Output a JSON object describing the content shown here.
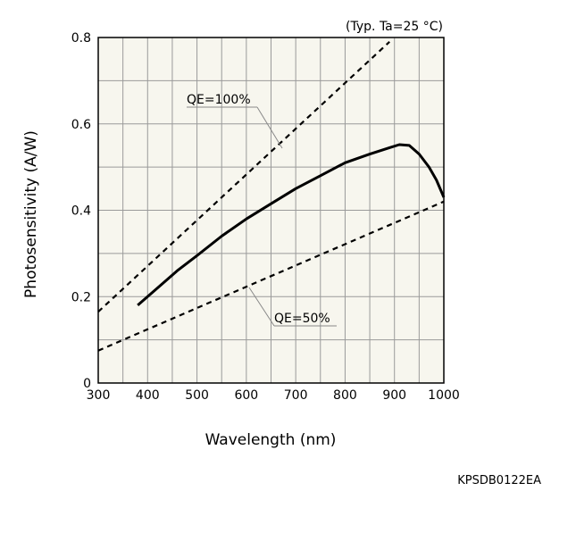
{
  "chart_data": {
    "type": "line",
    "title": "",
    "condition_note": "(Typ. Ta=25 °C)",
    "xlabel": "Wavelength (nm)",
    "ylabel": "Photosensitivity (A/W)",
    "xlim": [
      300,
      1000
    ],
    "ylim": [
      0,
      0.8
    ],
    "x_ticks": [
      300,
      400,
      500,
      600,
      700,
      800,
      900,
      1000
    ],
    "y_ticks": [
      0,
      0.2,
      0.4,
      0.6,
      0.8
    ],
    "x_tick_labels": [
      "300",
      "400",
      "500",
      "600",
      "700",
      "800",
      "900",
      "1000"
    ],
    "y_tick_labels": [
      "0",
      "0.2",
      "0.4",
      "0.6",
      "0.8"
    ],
    "grid": true,
    "plot_background": "#f7f6ee",
    "series": [
      {
        "style": "solid",
        "x": [
          380,
          420,
          460,
          500,
          550,
          600,
          650,
          700,
          750,
          800,
          850,
          890,
          910,
          930,
          950,
          970,
          985,
          1000
        ],
        "y": [
          0.18,
          0.22,
          0.26,
          0.295,
          0.34,
          0.38,
          0.415,
          0.45,
          0.48,
          0.51,
          0.53,
          0.545,
          0.552,
          0.55,
          0.53,
          0.5,
          0.47,
          0.43
        ]
      },
      {
        "name": "QE=100%",
        "style": "dashed",
        "x": [
          300,
          890
        ],
        "y": [
          0.165,
          0.79
        ]
      },
      {
        "name": "QE=50%",
        "style": "dashed",
        "x": [
          300,
          1000
        ],
        "y": [
          0.075,
          0.42
        ]
      }
    ],
    "annotations": [
      {
        "text": "QE=100%",
        "series": "QE=100%"
      },
      {
        "text": "QE=50%",
        "series": "QE=50%"
      }
    ],
    "figure_code": "KPSDB0122EA"
  }
}
